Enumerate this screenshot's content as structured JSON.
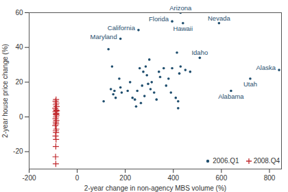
{
  "chart_data": {
    "type": "scatter",
    "x_label": "2-year change in non-agency MBS volume (%)",
    "y_label": "2-year house price change (%)",
    "xlim": [
      -200,
      850
    ],
    "xticks": [
      -200,
      0,
      200,
      400,
      600,
      800
    ],
    "ylim": [
      -30,
      60
    ],
    "yticks": [
      -20,
      0,
      20,
      40,
      60
    ],
    "grid": false,
    "legend": "lower right",
    "series": [
      {
        "name": "2006.Q1",
        "color": "#1f4e6e",
        "marker": "dot",
        "x": [
          430,
          395,
          590,
          440,
          255,
          180,
          510,
          840,
          720,
          640,
          110,
          130,
          140,
          145,
          150,
          155,
          160,
          175,
          180,
          185,
          210,
          220,
          230,
          240,
          245,
          250,
          260,
          265,
          270,
          275,
          280,
          285,
          290,
          295,
          300,
          305,
          310,
          320,
          330,
          340,
          345,
          360,
          370,
          380,
          390,
          395,
          410,
          415,
          420,
          420,
          425,
          430,
          450,
          470
        ],
        "values": [
          60,
          55,
          54,
          54,
          50,
          45,
          34,
          27,
          22,
          15,
          9,
          39,
          16,
          29,
          13,
          15,
          11,
          22,
          17,
          14,
          15,
          20,
          11,
          10,
          6,
          15,
          28,
          8,
          18,
          26,
          12,
          29,
          24,
          19,
          33,
          16,
          20,
          14,
          10,
          26,
          23,
          28,
          18,
          22,
          14,
          28,
          11,
          37,
          9,
          5,
          25,
          29,
          27,
          26
        ]
      },
      {
        "name": "2008.Q4",
        "color": "#c0282d",
        "marker": "plus",
        "x": [
          -88,
          -90,
          -87,
          -89,
          -86,
          -91,
          -88,
          -85,
          -90,
          -87,
          -89,
          -86,
          -88,
          -90,
          -87,
          -89,
          -88,
          -91,
          -87,
          -89,
          -88,
          -90,
          -88,
          -89,
          -90,
          -89
        ],
        "values": [
          10,
          9,
          8,
          7,
          6,
          5,
          4,
          3.5,
          3,
          2,
          1.5,
          1,
          0,
          -1,
          -2,
          -3,
          -4,
          -5,
          -7,
          -8,
          -9,
          -11,
          -13,
          -17,
          -23,
          -27
        ]
      }
    ],
    "annotations": [
      {
        "text": "Arizona",
        "x": 430,
        "y": 60,
        "position": "above"
      },
      {
        "text": "Florida",
        "x": 395,
        "y": 55,
        "position": "left"
      },
      {
        "text": "Nevada",
        "x": 590,
        "y": 54,
        "position": "above"
      },
      {
        "text": "Hawaii",
        "x": 440,
        "y": 54,
        "position": "below"
      },
      {
        "text": "California",
        "x": 255,
        "y": 50,
        "position": "left"
      },
      {
        "text": "Maryland",
        "x": 180,
        "y": 45,
        "position": "left"
      },
      {
        "text": "Idaho",
        "x": 510,
        "y": 34,
        "position": "above"
      },
      {
        "text": "Alaska",
        "x": 840,
        "y": 27,
        "position": "left"
      },
      {
        "text": "Utah",
        "x": 720,
        "y": 22,
        "position": "below"
      },
      {
        "text": "Alabama",
        "x": 640,
        "y": 15,
        "position": "below"
      }
    ]
  }
}
